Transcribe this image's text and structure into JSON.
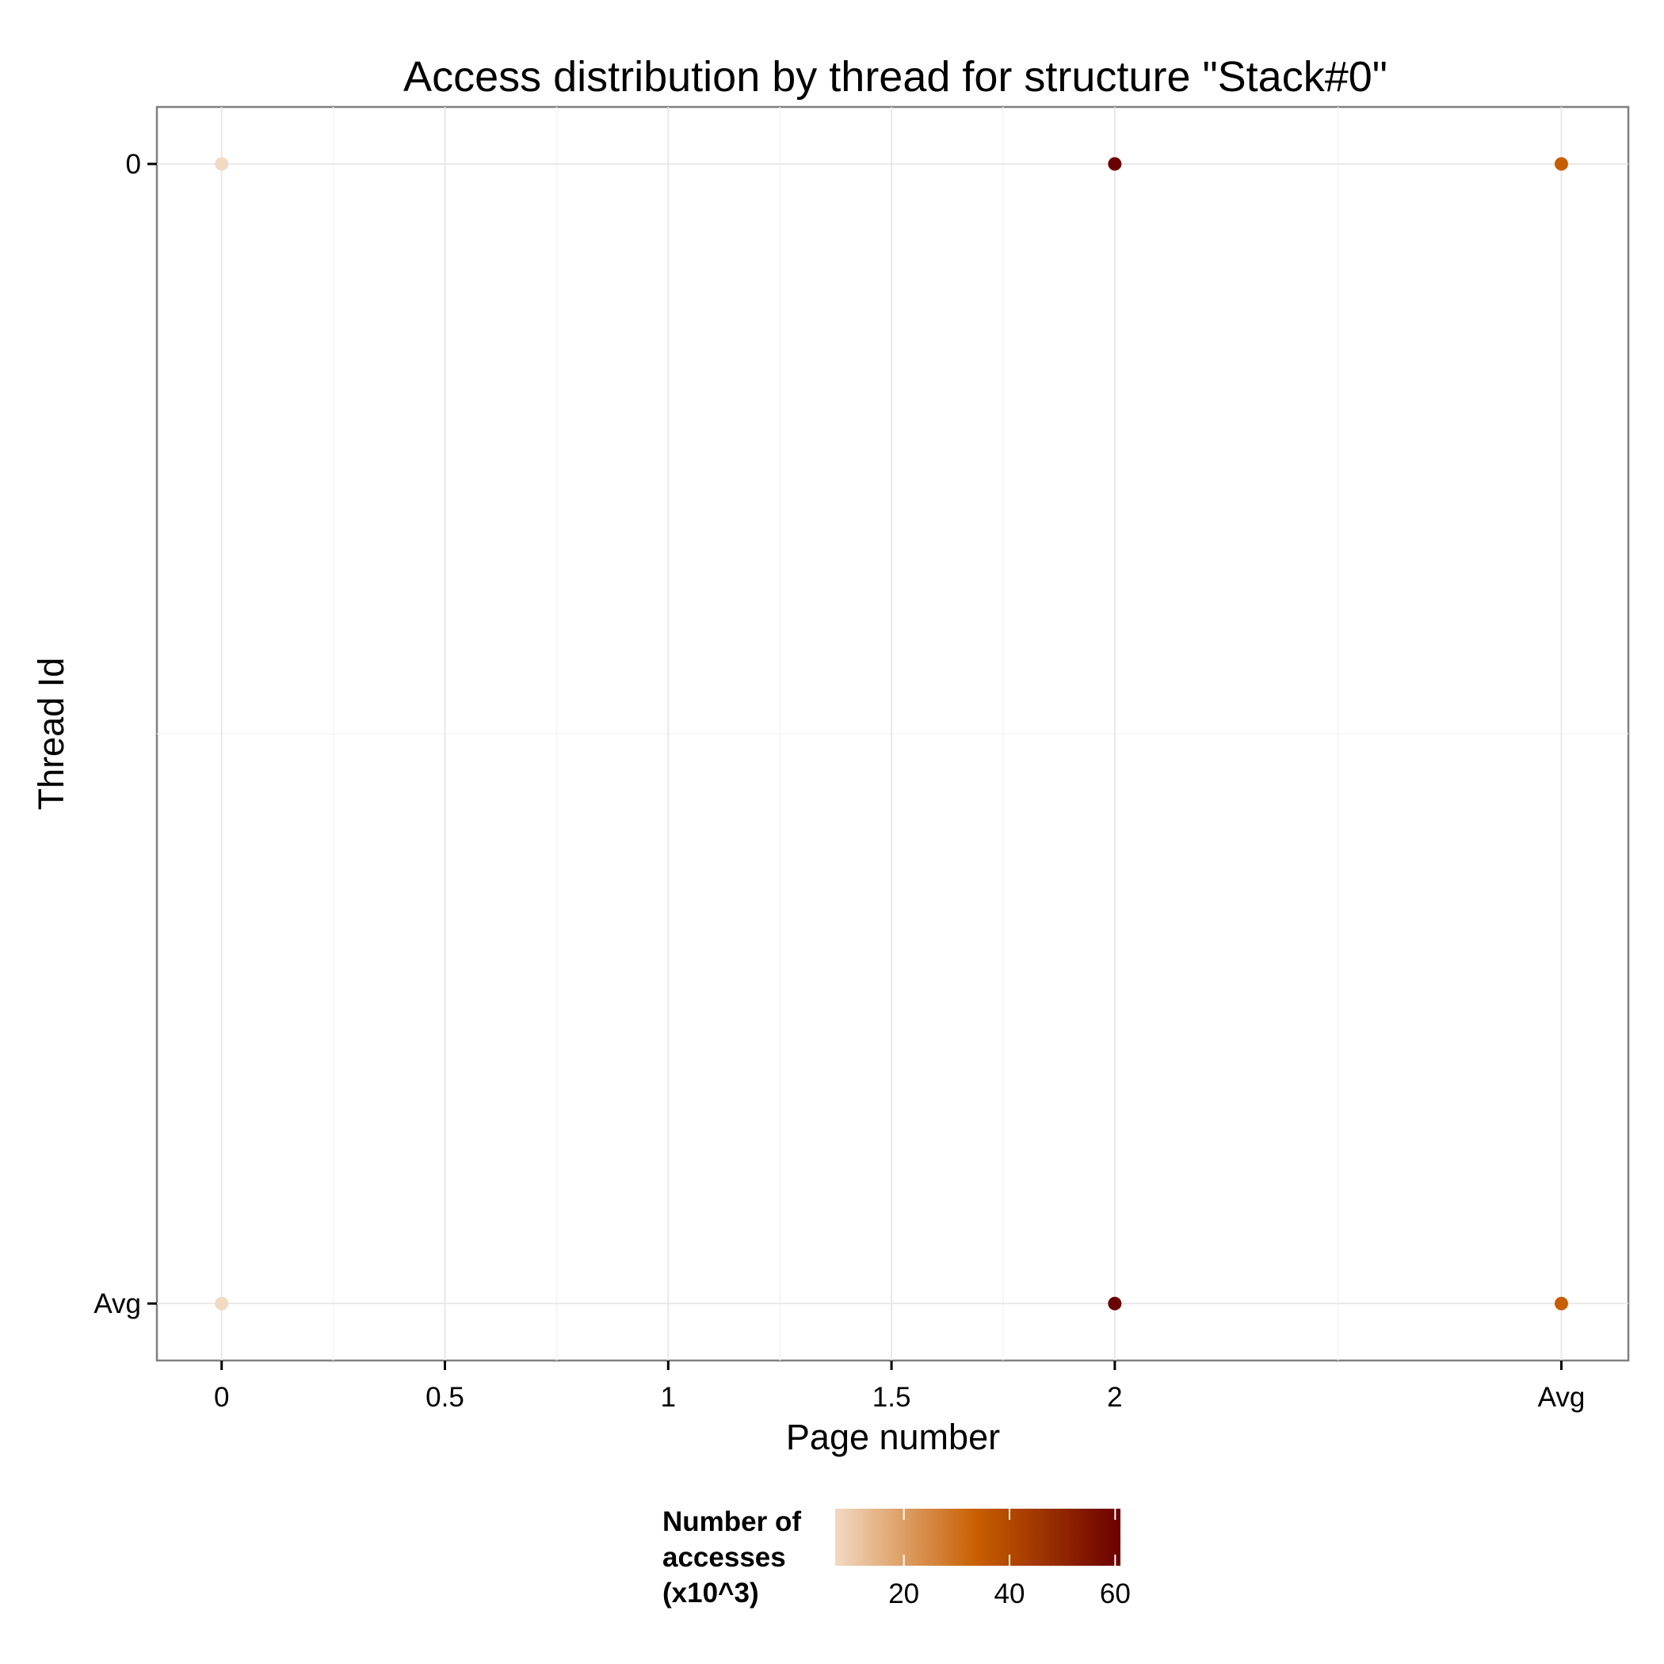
{
  "chart_data": {
    "type": "scatter",
    "title": "Access distribution by thread for structure \"Stack#0\"",
    "xlabel": "Page number",
    "ylabel": "Thread Id",
    "x_ticks": [
      {
        "label": "0",
        "pos": 0
      },
      {
        "label": "0.5",
        "pos": 0.5
      },
      {
        "label": "1",
        "pos": 1
      },
      {
        "label": "1.5",
        "pos": 1.5
      },
      {
        "label": "2",
        "pos": 2
      },
      {
        "label": "Avg",
        "pos": 3
      }
    ],
    "y_ticks": [
      {
        "label": "0",
        "pos": 0
      },
      {
        "label": "Avg",
        "pos": 1
      }
    ],
    "xlim": [
      -0.145,
      3.15
    ],
    "ylim": [
      -0.05,
      1.05
    ],
    "grid": true,
    "points": [
      {
        "page": "0",
        "thread": "0",
        "x": 0,
        "y": 0,
        "value": 7
      },
      {
        "page": "2",
        "thread": "0",
        "x": 2,
        "y": 0,
        "value": 61
      },
      {
        "page": "Avg",
        "thread": "0",
        "x": 3,
        "y": 0,
        "value": 34
      },
      {
        "page": "0",
        "thread": "Avg",
        "x": 0,
        "y": 1,
        "value": 7
      },
      {
        "page": "2",
        "thread": "Avg",
        "x": 2,
        "y": 1,
        "value": 61
      },
      {
        "page": "Avg",
        "thread": "Avg",
        "x": 3,
        "y": 1,
        "value": 34
      }
    ],
    "legend": {
      "title_lines": [
        "Number of",
        "accesses",
        "(x10^3)"
      ],
      "placement": "bottom",
      "range": [
        7,
        61
      ],
      "ticks": [
        20,
        40,
        60
      ],
      "colors": [
        "#f2d9c2",
        "#c75e00",
        "#6b0000"
      ]
    }
  }
}
